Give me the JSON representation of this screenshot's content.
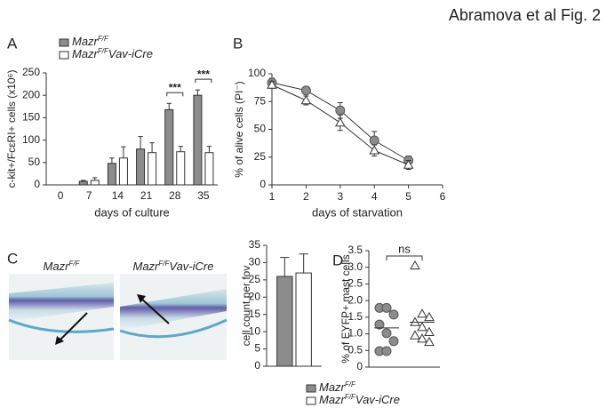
{
  "header": "Abramova et al Fig. 2",
  "chart_data": [
    {
      "type": "bar",
      "panel": "A",
      "ylabel": "c-kit+/FcεRI+ cells (x10⁶)",
      "xlabel": "days of culture",
      "categories": [
        "0",
        "7",
        "14",
        "21",
        "28",
        "35"
      ],
      "series": [
        {
          "name": "MazrF/F",
          "color": "#8c8c8c",
          "values": [
            0,
            8,
            48,
            80,
            168,
            200
          ],
          "errors": [
            0,
            2,
            12,
            28,
            14,
            12
          ]
        },
        {
          "name": "MazrF/FVav-iCre",
          "color": "#ffffff",
          "values": [
            0,
            10,
            60,
            72,
            74,
            72
          ],
          "errors": [
            0,
            6,
            25,
            22,
            12,
            14
          ]
        }
      ],
      "annotations": [
        {
          "text": "***",
          "category": "28"
        },
        {
          "text": "***",
          "category": "35"
        }
      ],
      "ylim": [
        0,
        250
      ],
      "yticks": [
        0,
        50,
        100,
        150,
        200,
        250
      ]
    },
    {
      "type": "line",
      "panel": "B",
      "ylabel": "% of alive cells (PI⁻)",
      "xlabel": "days of starvation",
      "x": [
        1,
        2,
        3,
        4,
        5
      ],
      "series": [
        {
          "color": "#8c8c8c",
          "marker": "circle",
          "values": [
            92,
            85,
            67,
            40,
            22
          ],
          "errors": [
            4,
            3,
            7,
            8,
            4
          ]
        },
        {
          "color": "#ffffff",
          "marker": "triangle",
          "values": [
            90,
            76,
            56,
            31,
            18
          ],
          "errors": [
            3,
            4,
            7,
            5,
            4
          ]
        }
      ],
      "xlim": [
        1,
        6
      ],
      "xticks": [
        1,
        2,
        3,
        4,
        5,
        6
      ],
      "ylim": [
        0,
        100
      ],
      "yticks": [
        0,
        25,
        50,
        75,
        100
      ]
    },
    {
      "type": "bar",
      "panel": "C",
      "ylabel": "cell count per fov",
      "image_labels": [
        "MazrF/F",
        "MazrF/FVav-iCre"
      ],
      "series": [
        {
          "name": "MazrF/F",
          "color": "#8c8c8c",
          "values": [
            26
          ],
          "errors": [
            5.5
          ]
        },
        {
          "name": "MazrF/FVav-iCre",
          "color": "#ffffff",
          "values": [
            27
          ],
          "errors": [
            5.5
          ]
        }
      ],
      "ylim": [
        0,
        35
      ],
      "yticks": [
        0,
        5,
        10,
        15,
        20,
        25,
        30,
        35
      ]
    },
    {
      "type": "scatter",
      "panel": "D",
      "ylabel": "% of EYFP+ mast cells",
      "series": [
        {
          "color": "#8c8c8c",
          "marker": "circle",
          "values": [
            1.78,
            1.78,
            1.58,
            1.28,
            1.02,
            0.78,
            0.48,
            0.48
          ],
          "mean": 1.18
        },
        {
          "color": "#ffffff",
          "marker": "triangle",
          "values": [
            3.05,
            1.6,
            1.5,
            1.35,
            1.2,
            1.05,
            0.95,
            0.85,
            0.75
          ],
          "mean": 1.35
        }
      ],
      "annotations": [
        {
          "text": "ns"
        }
      ],
      "ylim": [
        0,
        3.5
      ],
      "yticks": [
        0,
        0.5,
        {
          "value": 1,
          "label": "1.0"
        },
        1.5,
        {
          "value": 2,
          "label": "2.0"
        },
        2.5,
        {
          "value": 3,
          "label": "3.0"
        },
        3.5
      ]
    }
  ]
}
